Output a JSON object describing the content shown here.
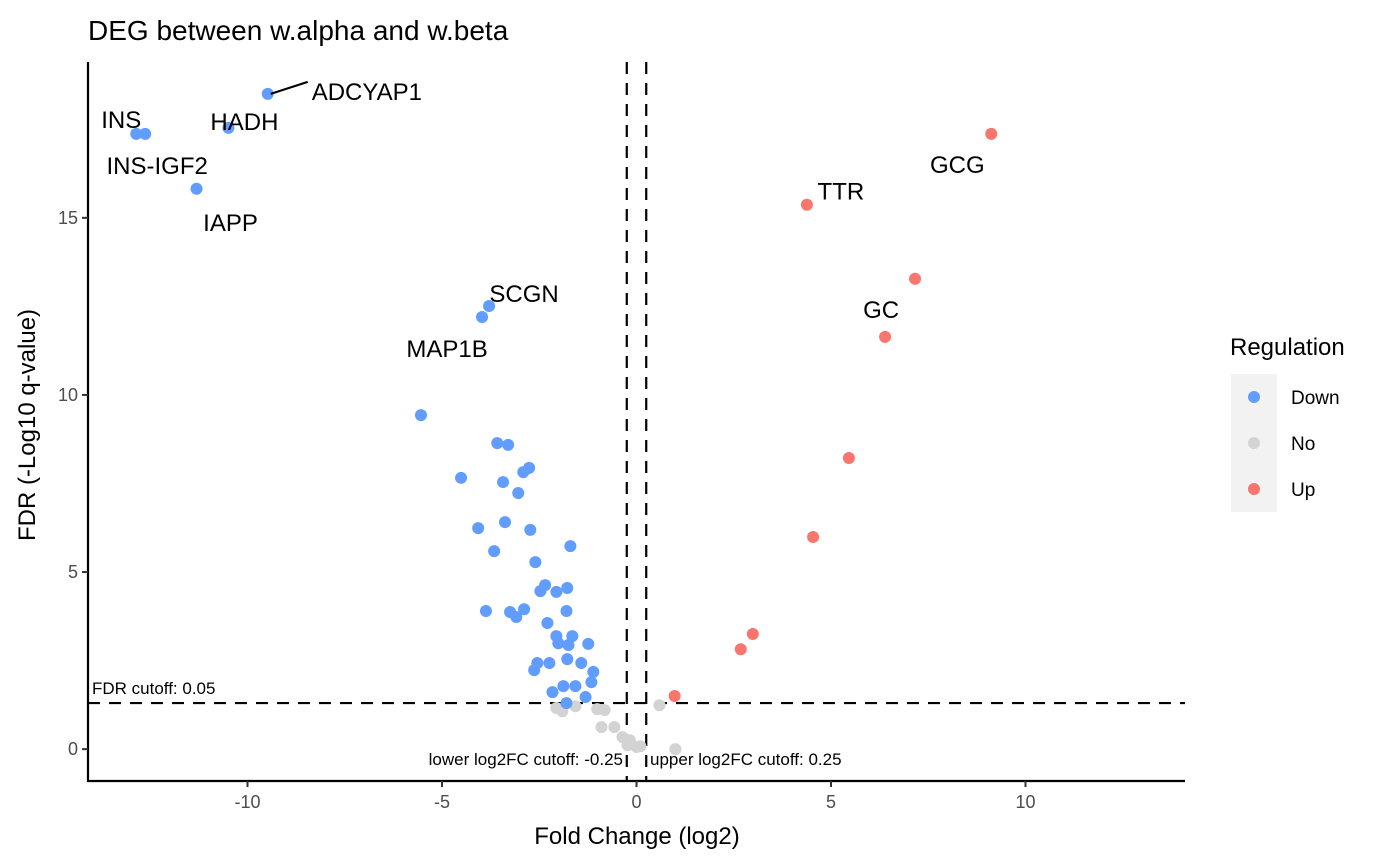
{
  "chart_data": {
    "type": "scatter",
    "title": "DEG between w.alpha and w.beta",
    "xlabel": "Fold Change (log2)",
    "ylabel": "FDR (-Log10 q-value)",
    "xlim": [
      -14.1,
      14.1
    ],
    "ylim": [
      -0.9,
      19.4
    ],
    "xticks": [
      -10,
      -5,
      0,
      5,
      10
    ],
    "yticks": [
      0,
      5,
      10,
      15
    ],
    "grid": false,
    "legend": {
      "title": "Regulation",
      "position": "right",
      "entries": [
        {
          "name": "Down",
          "color": "#619CFF"
        },
        {
          "name": "No",
          "color": "#D3D3D3"
        },
        {
          "name": "Up",
          "color": "#F8766D"
        }
      ]
    },
    "cutoffs": {
      "fdr": {
        "y": 1.30103,
        "label": "FDR cutoff: 0.05"
      },
      "lower_log2fc": {
        "x": -0.25,
        "label": "lower log2FC cutoff: -0.25"
      },
      "upper_log2fc": {
        "x": 0.25,
        "label": "upper log2FC cutoff: 0.25"
      }
    },
    "series": [
      {
        "name": "Down",
        "color": "#619CFF",
        "points": [
          {
            "x": -9.48,
            "y": 18.5,
            "label": "ADCYAP1"
          },
          {
            "x": -10.49,
            "y": 17.54,
            "label": "HADH"
          },
          {
            "x": -12.86,
            "y": 17.37,
            "label": "INS"
          },
          {
            "x": -12.63,
            "y": 17.37,
            "label": "INS-IGF2"
          },
          {
            "x": -11.31,
            "y": 15.82,
            "label": "IAPP"
          },
          {
            "x": -3.79,
            "y": 12.51,
            "label": "SCGN"
          },
          {
            "x": -3.97,
            "y": 12.2,
            "label": "MAP1B"
          },
          {
            "x": -5.54,
            "y": 9.43
          },
          {
            "x": -3.58,
            "y": 8.64
          },
          {
            "x": -3.3,
            "y": 8.59
          },
          {
            "x": -4.51,
            "y": 7.66
          },
          {
            "x": -2.76,
            "y": 7.94
          },
          {
            "x": -2.91,
            "y": 7.82
          },
          {
            "x": -3.43,
            "y": 7.54
          },
          {
            "x": -3.04,
            "y": 7.23
          },
          {
            "x": -4.07,
            "y": 6.24
          },
          {
            "x": -3.38,
            "y": 6.41
          },
          {
            "x": -2.73,
            "y": 6.19
          },
          {
            "x": -3.66,
            "y": 5.59
          },
          {
            "x": -1.7,
            "y": 5.73
          },
          {
            "x": -2.6,
            "y": 5.28
          },
          {
            "x": -2.35,
            "y": 4.63
          },
          {
            "x": -2.47,
            "y": 4.46
          },
          {
            "x": -2.06,
            "y": 4.44
          },
          {
            "x": -1.78,
            "y": 4.55
          },
          {
            "x": -3.87,
            "y": 3.9
          },
          {
            "x": -3.25,
            "y": 3.87
          },
          {
            "x": -3.09,
            "y": 3.73
          },
          {
            "x": -2.89,
            "y": 3.95
          },
          {
            "x": -1.8,
            "y": 3.9
          },
          {
            "x": -2.29,
            "y": 3.56
          },
          {
            "x": -2.06,
            "y": 3.19
          },
          {
            "x": -1.65,
            "y": 3.19
          },
          {
            "x": -2.01,
            "y": 2.99
          },
          {
            "x": -1.75,
            "y": 2.94
          },
          {
            "x": -1.24,
            "y": 2.97
          },
          {
            "x": -2.55,
            "y": 2.43
          },
          {
            "x": -2.63,
            "y": 2.23
          },
          {
            "x": -2.24,
            "y": 2.43
          },
          {
            "x": -1.78,
            "y": 2.54
          },
          {
            "x": -1.42,
            "y": 2.43
          },
          {
            "x": -1.11,
            "y": 2.18
          },
          {
            "x": -1.16,
            "y": 1.89
          },
          {
            "x": -2.16,
            "y": 1.61
          },
          {
            "x": -1.88,
            "y": 1.78
          },
          {
            "x": -1.57,
            "y": 1.78
          },
          {
            "x": -1.31,
            "y": 1.47
          },
          {
            "x": -1.8,
            "y": 1.3
          }
        ]
      },
      {
        "name": "No",
        "color": "#D3D3D3",
        "points": [
          {
            "x": -2.06,
            "y": 1.16
          },
          {
            "x": -1.91,
            "y": 1.07
          },
          {
            "x": -1.57,
            "y": 1.21
          },
          {
            "x": -1.01,
            "y": 1.13
          },
          {
            "x": -0.82,
            "y": 1.1
          },
          {
            "x": -0.9,
            "y": 0.62
          },
          {
            "x": -0.57,
            "y": 0.62
          },
          {
            "x": -0.36,
            "y": 0.34
          },
          {
            "x": -0.17,
            "y": 0.25
          },
          {
            "x": -0.23,
            "y": 0.11
          },
          {
            "x": 0.0,
            "y": 0.06
          },
          {
            "x": 0.1,
            "y": 0.08
          },
          {
            "x": 0.59,
            "y": 1.24
          },
          {
            "x": 1.0,
            "y": 0.0
          }
        ]
      },
      {
        "name": "Up",
        "color": "#F8766D",
        "points": [
          {
            "x": 9.12,
            "y": 17.37,
            "label": "GCG"
          },
          {
            "x": 4.38,
            "y": 15.37,
            "label": "TTR"
          },
          {
            "x": 7.16,
            "y": 13.28
          },
          {
            "x": 6.39,
            "y": 11.64,
            "label": "GC"
          },
          {
            "x": 5.46,
            "y": 8.22
          },
          {
            "x": 4.54,
            "y": 5.99
          },
          {
            "x": 2.99,
            "y": 3.25
          },
          {
            "x": 2.68,
            "y": 2.82
          },
          {
            "x": 0.98,
            "y": 1.5
          }
        ]
      }
    ]
  }
}
